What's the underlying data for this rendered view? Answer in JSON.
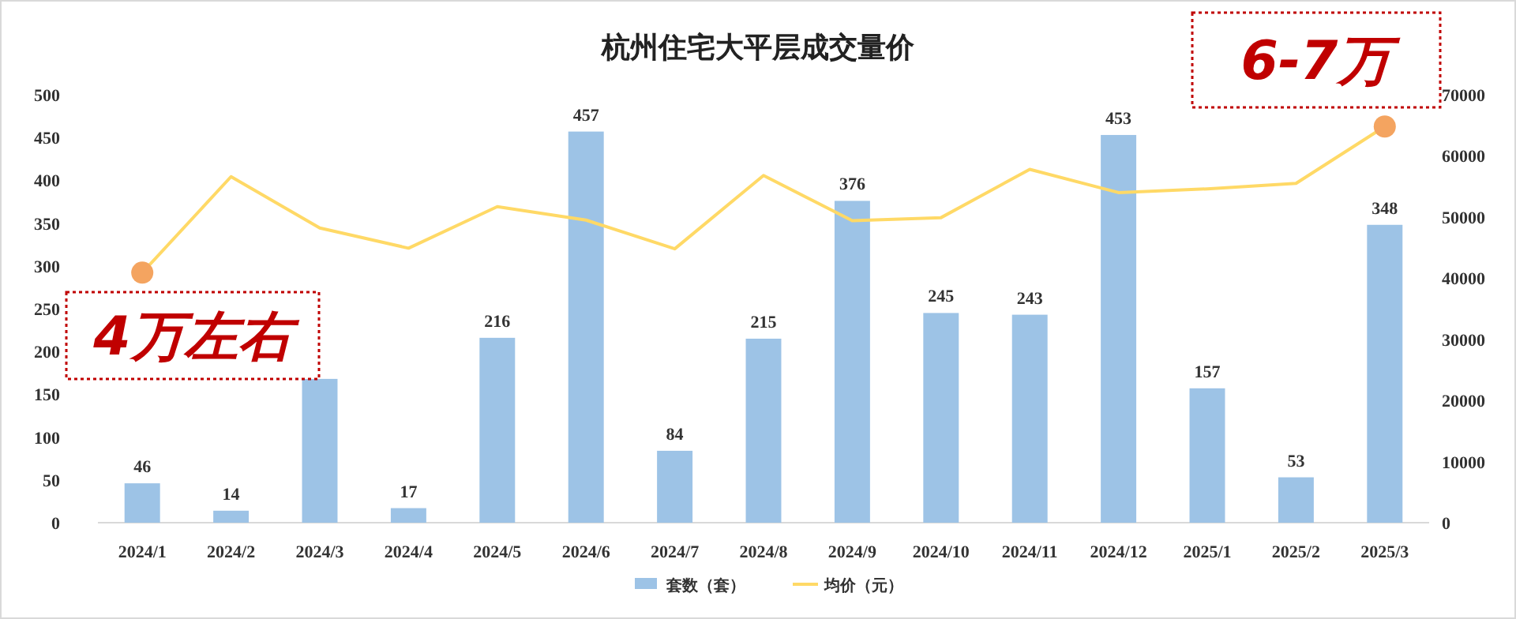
{
  "chart_data": {
    "type": "bar",
    "title": "杭州住宅大平层成交量价",
    "categories": [
      "2024/1",
      "2024/2",
      "2024/3",
      "2024/4",
      "2024/5",
      "2024/6",
      "2024/7",
      "2024/8",
      "2024/9",
      "2024/10",
      "2024/11",
      "2024/12",
      "2025/1",
      "2025/2",
      "2025/3"
    ],
    "series": [
      {
        "name": "套数（套）",
        "color": "#9dc3e6",
        "values": [
          46,
          14,
          168,
          17,
          216,
          457,
          84,
          215,
          376,
          245,
          243,
          453,
          157,
          53,
          348
        ],
        "value_labels": [
          "46",
          "14",
          null,
          "17",
          "216",
          "457",
          "84",
          "215",
          "376",
          "245",
          "243",
          "453",
          "157",
          "53",
          "348"
        ]
      },
      {
        "name": "均价（元）",
        "type": "line",
        "axis": "y2",
        "color": "#ffd966",
        "marker": "none",
        "values": [
          40900,
          56600,
          48200,
          44900,
          51700,
          49500,
          44800,
          56800,
          49400,
          49900,
          57800,
          54000,
          54600,
          55500,
          64800
        ]
      },
      {
        "type": "scatter",
        "axis": "y2",
        "color": "#f4a460",
        "marker": "circle",
        "values": [
          40900,
          null,
          null,
          null,
          null,
          null,
          null,
          null,
          null,
          null,
          null,
          null,
          null,
          null,
          64800
        ]
      }
    ],
    "ylim": [
      0,
      500
    ],
    "yticks": [
      0,
      50,
      100,
      150,
      200,
      250,
      300,
      350,
      400,
      450,
      500
    ],
    "y2lim": [
      0,
      70000
    ],
    "y2ticks": [
      0,
      10000,
      20000,
      30000,
      40000,
      50000,
      60000,
      70000
    ],
    "legend": "bottom",
    "annotations": [
      "4万左右",
      "6-7万"
    ]
  }
}
